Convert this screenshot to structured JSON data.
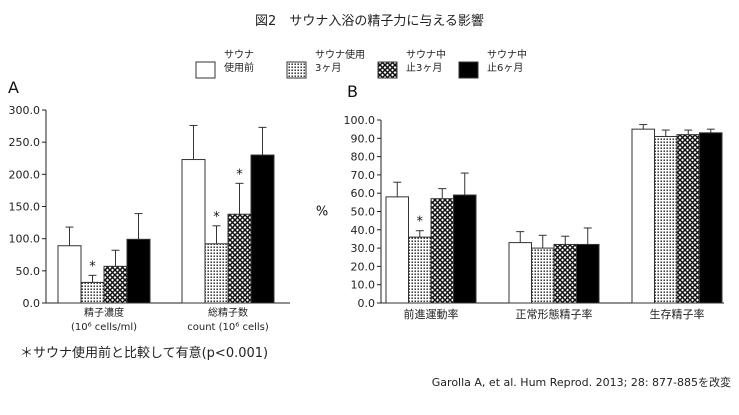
{
  "title": "図2　サウナ入浴の精子力に与える影響",
  "footnote": "＊サウナ使用前と比較して有意(p<0.001)",
  "citation": "Garolla A, et al. Hum Reprod. 2013; 28: 877-885を改変",
  "legend": [
    {
      "label": "サウナ\n使用前",
      "pattern": "white"
    },
    {
      "label": "サウナ使用\n3ヶ月",
      "pattern": "dots"
    },
    {
      "label": "サウナ中\n止3ヶ月",
      "pattern": "crosshatch"
    },
    {
      "label": "サウナ中\n止6ヶ月",
      "pattern": "black"
    }
  ],
  "colors": {
    "bar_edge": "#333333",
    "black_fill": "#000000",
    "text": "#222222"
  },
  "chart_data": [
    {
      "type": "bar",
      "panel_label": "A",
      "ylim": [
        0,
        300
      ],
      "yticks": [
        "0.0",
        "50.0",
        "100.0",
        "150.0",
        "200.0",
        "250.0",
        "300.0"
      ],
      "ylabel": "",
      "categories": [
        "精子濃度\n(10⁶ cells/ml)",
        "総精子数\ncount (10⁶ cells)"
      ],
      "series": [
        {
          "name": "サウナ使用前",
          "pattern": "white",
          "values": [
            89,
            223
          ],
          "errors": [
            29,
            53
          ],
          "sig": [
            false,
            false
          ]
        },
        {
          "name": "サウナ使用3ヶ月",
          "pattern": "dots",
          "values": [
            32,
            92
          ],
          "errors": [
            11,
            28
          ],
          "sig": [
            true,
            true
          ]
        },
        {
          "name": "サウナ中止3ヶ月",
          "pattern": "crosshatch",
          "values": [
            57,
            138
          ],
          "errors": [
            25,
            48
          ],
          "sig": [
            false,
            true
          ]
        },
        {
          "name": "サウナ中止6ヶ月",
          "pattern": "black",
          "values": [
            99,
            230
          ],
          "errors": [
            40,
            43
          ],
          "sig": [
            false,
            false
          ]
        }
      ]
    },
    {
      "type": "bar",
      "panel_label": "B",
      "ylim": [
        0,
        100
      ],
      "yticks": [
        "0.0",
        "10.0",
        "20.0",
        "30.0",
        "40.0",
        "50.0",
        "60.0",
        "70.0",
        "80.0",
        "90.0",
        "100.0"
      ],
      "ylabel": "%",
      "categories": [
        "前進運動率",
        "正常形態精子率",
        "生存精子率"
      ],
      "series": [
        {
          "name": "サウナ使用前",
          "pattern": "white",
          "values": [
            58,
            33,
            95
          ],
          "errors": [
            8,
            6,
            2.5
          ],
          "sig": [
            false,
            false,
            false
          ]
        },
        {
          "name": "サウナ使用3ヶ月",
          "pattern": "dots",
          "values": [
            36,
            30,
            91
          ],
          "errors": [
            3.5,
            7,
            3.5
          ],
          "sig": [
            true,
            false,
            false
          ]
        },
        {
          "name": "サウナ中止3ヶ月",
          "pattern": "crosshatch",
          "values": [
            57,
            32,
            92
          ],
          "errors": [
            5.5,
            4.5,
            2.5
          ],
          "sig": [
            false,
            false,
            false
          ]
        },
        {
          "name": "サウナ中止6ヶ月",
          "pattern": "black",
          "values": [
            59,
            32,
            93
          ],
          "errors": [
            12,
            9,
            2
          ],
          "sig": [
            false,
            false,
            false
          ]
        }
      ]
    }
  ]
}
